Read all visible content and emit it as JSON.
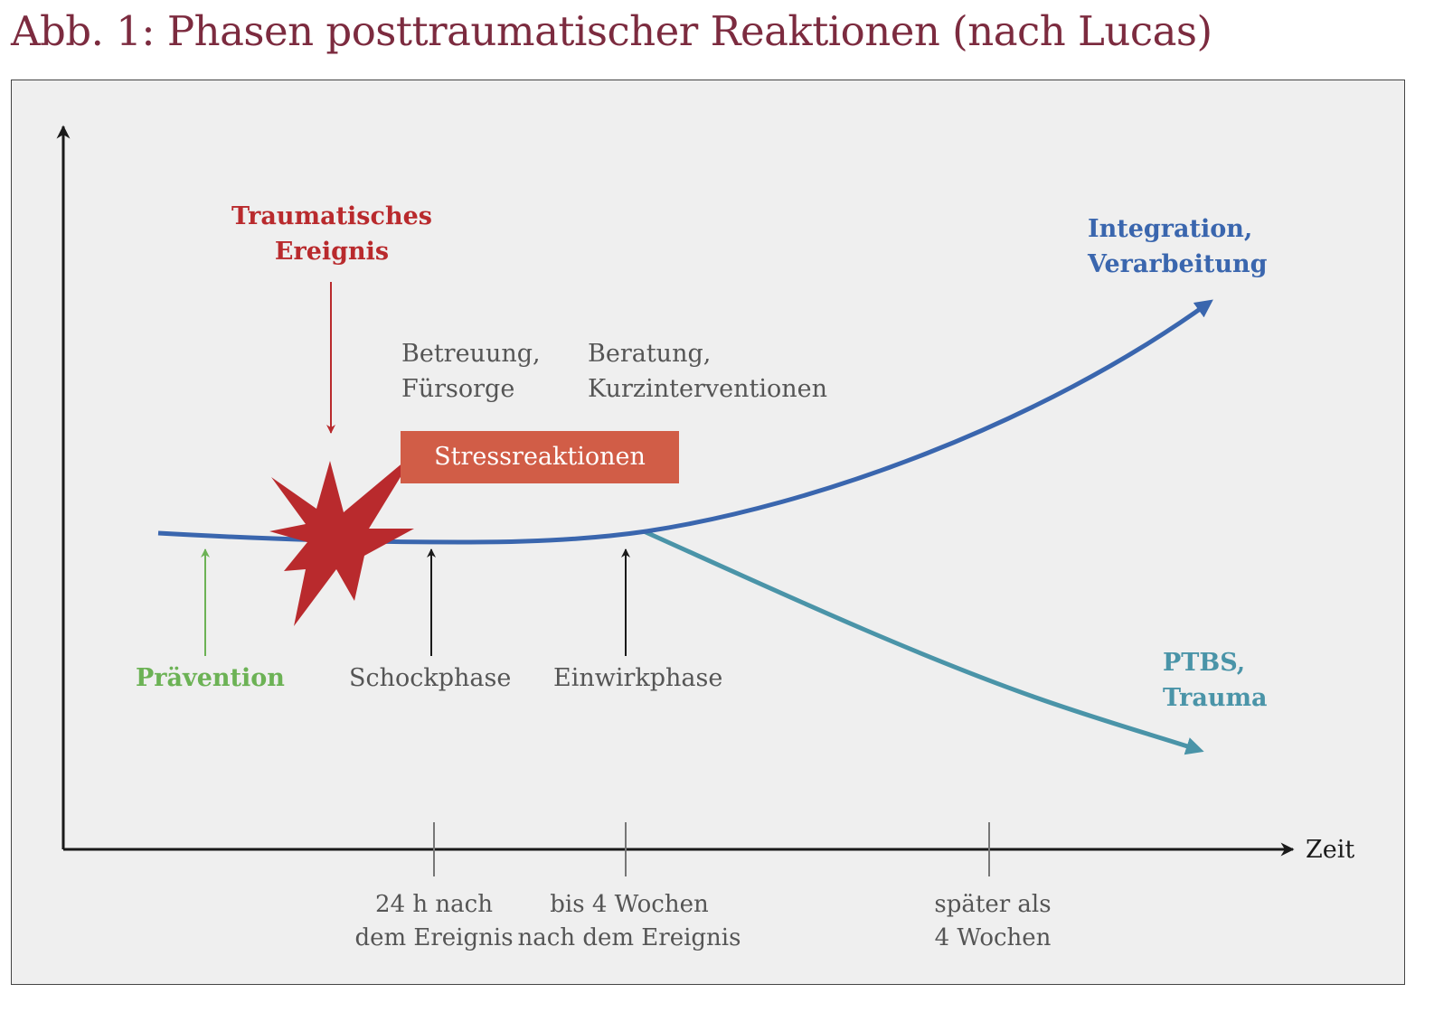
{
  "title": "Abb. 1: Phasen posttraumatischer Reaktionen (nach Lucas)",
  "colors": {
    "title": "#7c2b3f",
    "panel_bg": "#efefef",
    "trauma_red": "#b92a2d",
    "integration_blue": "#3a66ae",
    "ptbs_teal": "#4a94a8",
    "prevention_green": "#6cb255",
    "stress_box": "#d15d47",
    "text_gray": "#555555"
  },
  "axis": {
    "x_label": "Zeit",
    "ticks": [
      {
        "line1": "24 h nach",
        "line2": "dem Ereignis"
      },
      {
        "line1": "bis 4 Wochen",
        "line2": "nach dem Ereignis"
      },
      {
        "line1": "später als",
        "line2": "4 Wochen"
      }
    ]
  },
  "event": {
    "line1": "Traumatisches",
    "line2": "Ereignis",
    "icon": "explosion-star-icon"
  },
  "stress_label": "Stressreaktionen",
  "care": {
    "line1": "Betreuung,",
    "line2": "Fürsorge"
  },
  "counseling": {
    "line1": "Beratung,",
    "line2": "Kurzinterventionen"
  },
  "phases": {
    "prevention": "Prävention",
    "shock": "Schockphase",
    "impact": "Einwirkphase"
  },
  "outcomes": {
    "integration": {
      "line1": "Integration,",
      "line2": "Verarbeitung"
    },
    "ptbs": {
      "line1": "PTBS,",
      "line2": "Trauma"
    }
  }
}
